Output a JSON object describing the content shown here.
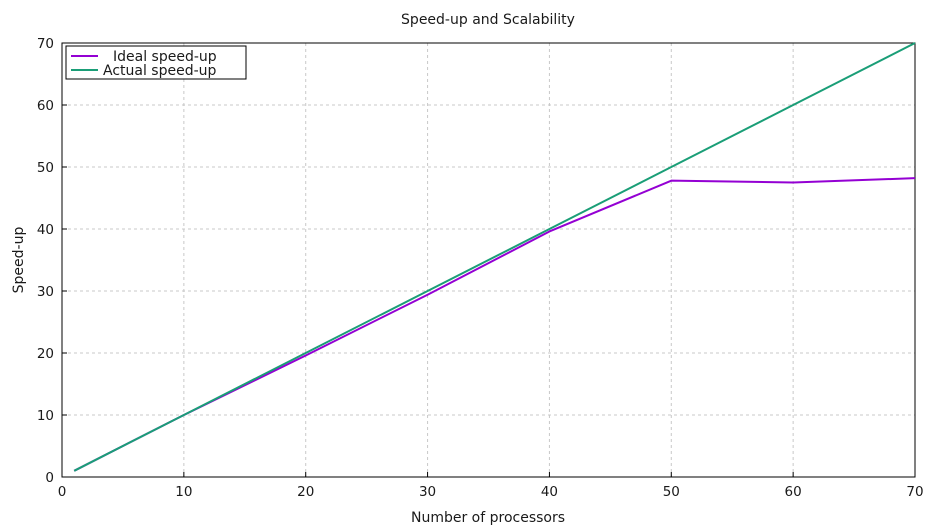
{
  "chart_data": {
    "type": "line",
    "title": "Speed-up and Scalability",
    "xlabel": "Number of processors",
    "ylabel": "Speed-up",
    "xlim": [
      0,
      70
    ],
    "ylim": [
      0,
      70
    ],
    "xticks": [
      0,
      10,
      20,
      30,
      40,
      50,
      60,
      70
    ],
    "yticks": [
      0,
      10,
      20,
      30,
      40,
      50,
      60,
      70
    ],
    "grid": true,
    "legend_position": "top-left",
    "series": [
      {
        "name": "Ideal speed-up",
        "color": "#9400d3",
        "x": [
          1,
          10,
          20,
          30,
          40,
          50,
          60,
          70
        ],
        "y": [
          1,
          10,
          19.6,
          29.4,
          39.6,
          47.8,
          47.5,
          48.2
        ]
      },
      {
        "name": "Actual speed-up",
        "color": "#1a9e77",
        "x": [
          1,
          10,
          20,
          30,
          40,
          50,
          60,
          70
        ],
        "y": [
          1,
          10,
          20,
          30,
          40,
          50,
          60,
          70
        ]
      }
    ]
  }
}
